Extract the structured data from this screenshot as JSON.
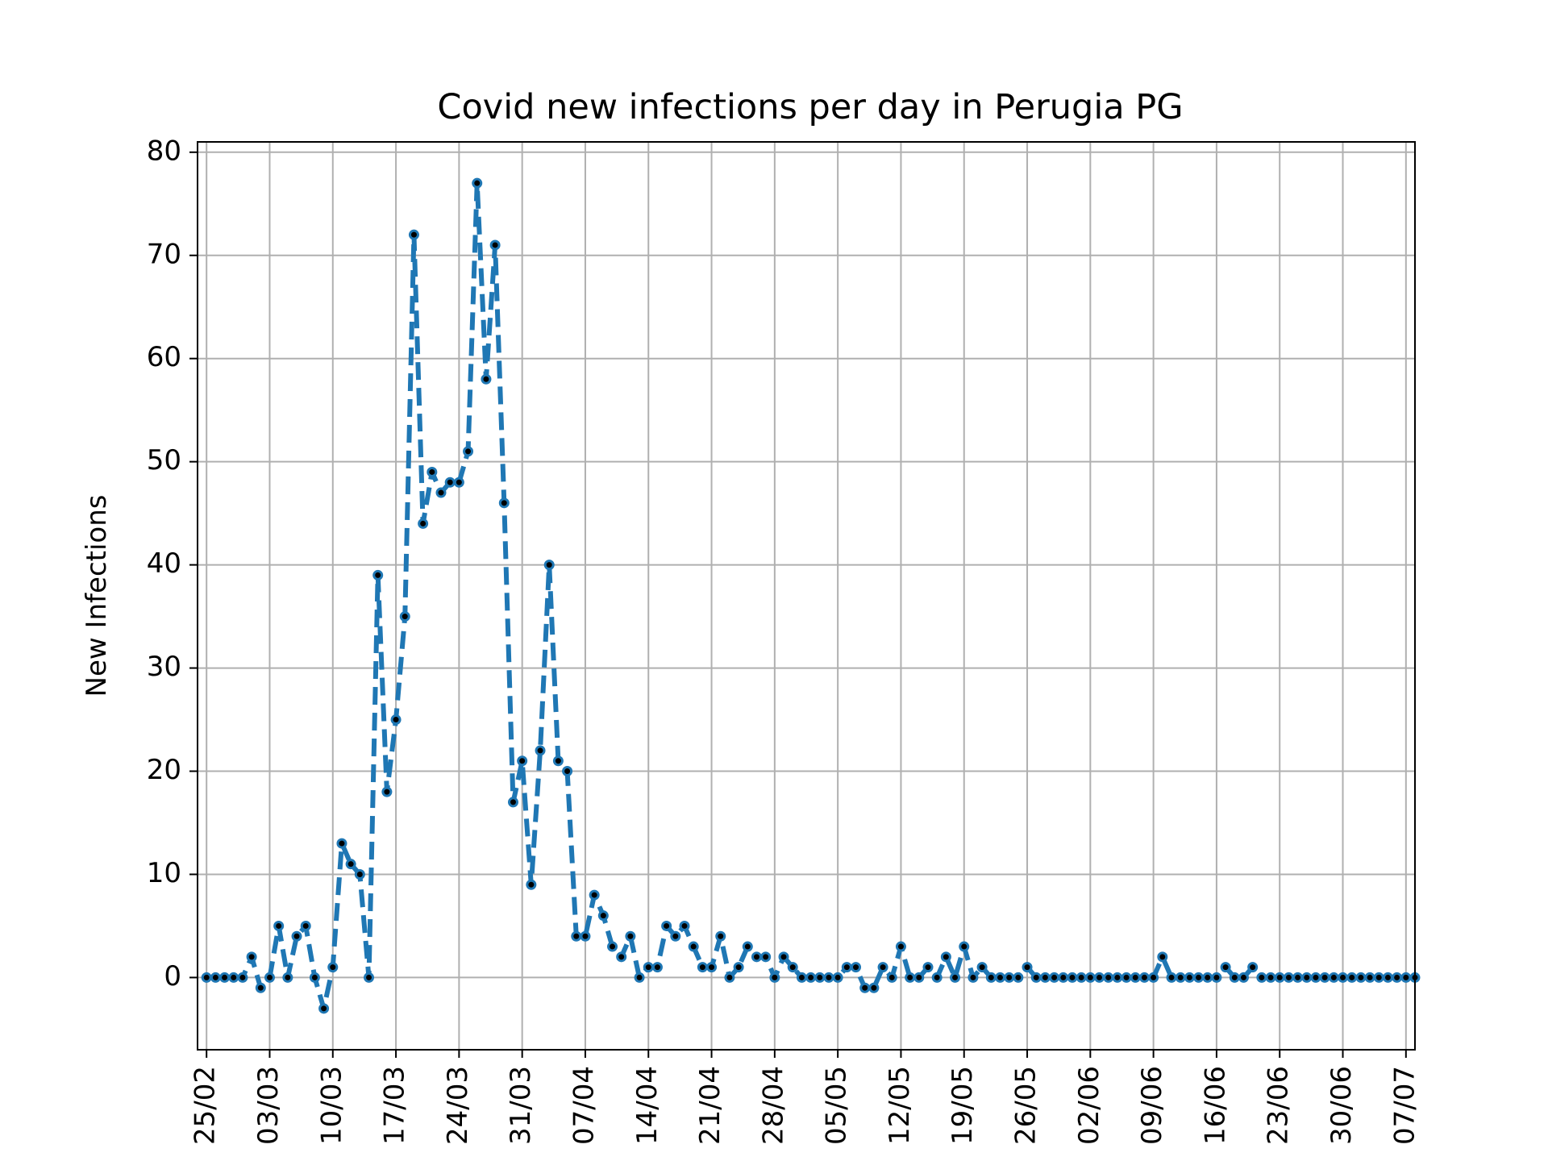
{
  "chart_data": {
    "type": "line",
    "title": "Covid new infections per day in Perugia PG",
    "xlabel": "",
    "ylabel": "New Infections",
    "x_ticks": [
      "25/02",
      "03/03",
      "10/03",
      "17/03",
      "24/03",
      "31/03",
      "07/04",
      "14/04",
      "21/04",
      "28/04",
      "05/05",
      "12/05",
      "19/05",
      "26/05",
      "02/06",
      "09/06",
      "16/06",
      "23/06",
      "30/06",
      "07/07"
    ],
    "y_ticks": [
      0,
      10,
      20,
      30,
      40,
      50,
      60,
      70,
      80
    ],
    "ylim": [
      -7,
      81
    ],
    "x_range": [
      "24/02",
      "08/07"
    ],
    "grid": true,
    "line_style": "dashed",
    "colors": {
      "line": "#1f77b4",
      "marker_center": "#000000",
      "grid": "#b0b0b0"
    },
    "series": [
      {
        "x_start": "25/02",
        "values": [
          0,
          0,
          0,
          0,
          0,
          2,
          -1,
          0,
          5,
          0,
          4,
          5,
          0,
          -3,
          1,
          13,
          11,
          10,
          0,
          39,
          18,
          25,
          35,
          72,
          44,
          49,
          47,
          48,
          48,
          51,
          77,
          58,
          71,
          46,
          17,
          21,
          9,
          22,
          40,
          21,
          20,
          4,
          4,
          8,
          6,
          3,
          2,
          4,
          0,
          1,
          1,
          5,
          4,
          5,
          3,
          1,
          1,
          4,
          0,
          1,
          3,
          2,
          2,
          0,
          2,
          1,
          0,
          0,
          0,
          0,
          0,
          1,
          1,
          -1,
          -1,
          1,
          0,
          3,
          0,
          0,
          1,
          0,
          2,
          0,
          3,
          0,
          1,
          0,
          0,
          0,
          0,
          1,
          0,
          0,
          0,
          0,
          0,
          0,
          0,
          0,
          0,
          0,
          0,
          0,
          0,
          0,
          2,
          0,
          0,
          0,
          0,
          0,
          0,
          1,
          0,
          0,
          1,
          0,
          0,
          0,
          0,
          0,
          0,
          0,
          0,
          0,
          0,
          0,
          0,
          0,
          0,
          0,
          0,
          0,
          0
        ]
      }
    ]
  }
}
